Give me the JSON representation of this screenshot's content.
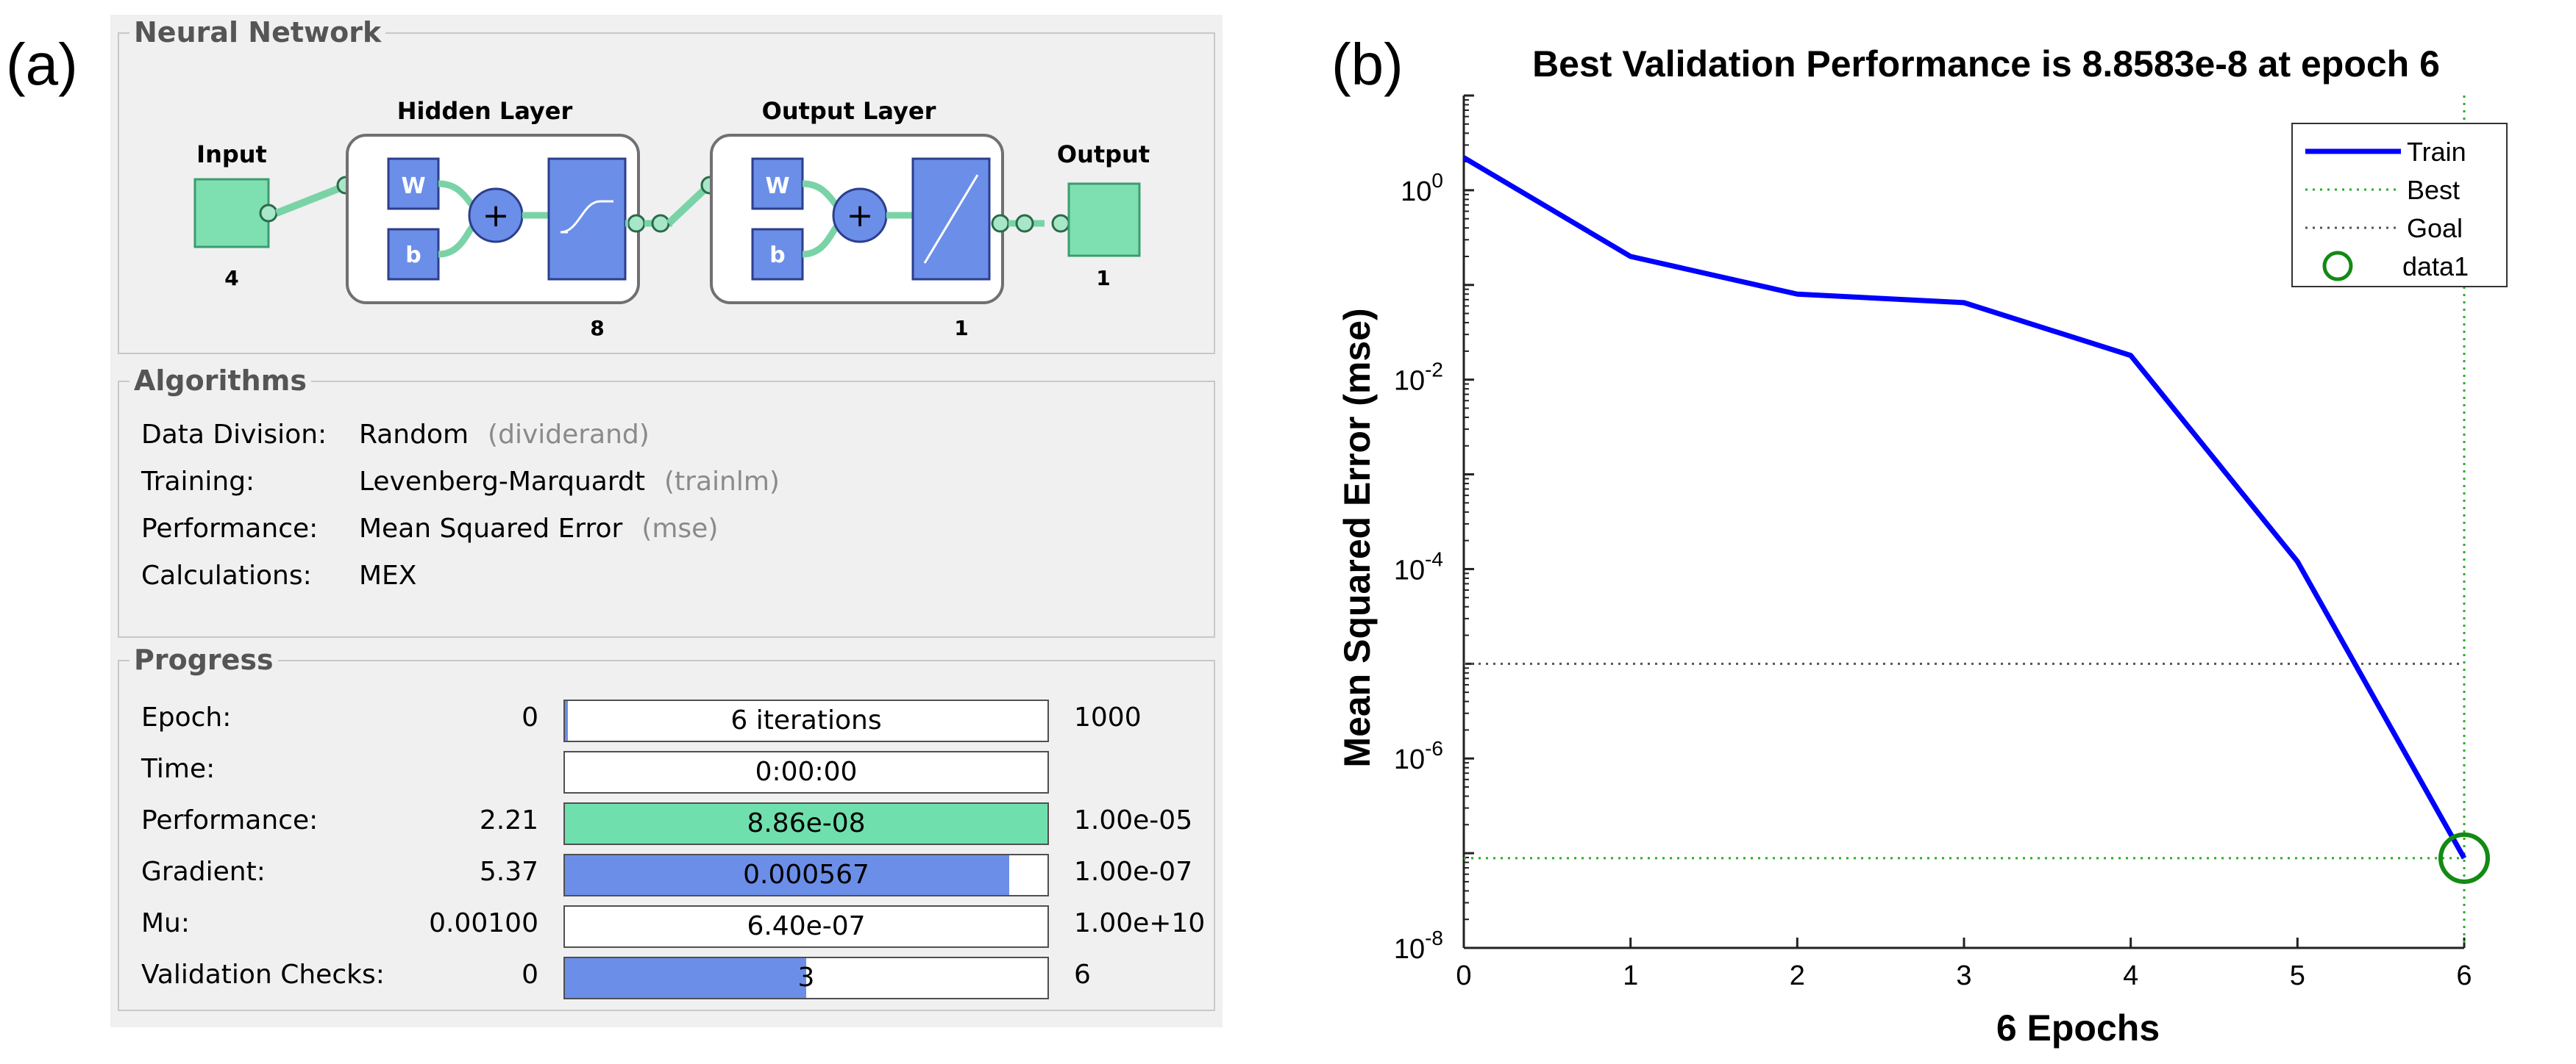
{
  "panel_labels": {
    "a": "(a)",
    "b": "(b)"
  },
  "neural_network": {
    "title": "Neural Network",
    "input": {
      "label": "Input",
      "size": "4"
    },
    "hidden_layer": {
      "label": "Hidden Layer",
      "size": "8",
      "w": "W",
      "b": "b",
      "plus": "+"
    },
    "output_layer": {
      "label": "Output Layer",
      "size": "1",
      "w": "W",
      "b": "b",
      "plus": "+"
    },
    "output": {
      "label": "Output",
      "size": "1"
    },
    "colors": {
      "layer_blue": "#6b8ee8",
      "io_green": "#7ee0b0",
      "arrow_green": "#79d3a6"
    }
  },
  "algorithms": {
    "title": "Algorithms",
    "rows": [
      {
        "label": "Data Division:",
        "value": "Random",
        "fn": "(dividerand)"
      },
      {
        "label": "Training:",
        "value": "Levenberg-Marquardt",
        "fn": "(trainlm)"
      },
      {
        "label": "Performance:",
        "value": "Mean Squared Error",
        "fn": "(mse)"
      },
      {
        "label": "Calculations:",
        "value": "MEX",
        "fn": ""
      }
    ]
  },
  "progress": {
    "title": "Progress",
    "rows": [
      {
        "label": "Epoch:",
        "start": "0",
        "text": "6 iterations",
        "end": "1000",
        "fill": 0.006,
        "color": "#6b8ee8"
      },
      {
        "label": "Time:",
        "start": "",
        "text": "0:00:00",
        "end": "",
        "fill": 0,
        "color": "#6b8ee8"
      },
      {
        "label": "Performance:",
        "start": "2.21",
        "text": "8.86e-08",
        "end": "1.00e-05",
        "fill": 1.0,
        "color": "#6fe0ad"
      },
      {
        "label": "Gradient:",
        "start": "5.37",
        "text": "0.000567",
        "end": "1.00e-07",
        "fill": 0.92,
        "color": "#6b8ee8"
      },
      {
        "label": "Mu:",
        "start": "0.00100",
        "text": "6.40e-07",
        "end": "1.00e+10",
        "fill": 0,
        "color": "#6b8ee8"
      },
      {
        "label": "Validation Checks:",
        "start": "0",
        "text": "3",
        "end": "6",
        "fill": 0.5,
        "color": "#6b8ee8"
      }
    ]
  },
  "chart_data": {
    "type": "line",
    "title": "Best Validation Performance is 8.8583e-8 at epoch 6",
    "xlabel": "6 Epochs",
    "ylabel": "Mean Squared Error  (mse)",
    "yscale": "log",
    "xlim": [
      0,
      6
    ],
    "ylim_exp": [
      -8,
      1
    ],
    "xticks": [
      "0",
      "1",
      "2",
      "3",
      "4",
      "5",
      "6"
    ],
    "yticks": [
      {
        "exp": 0,
        "base": "10",
        "sup": "0"
      },
      {
        "exp": -2,
        "base": "10",
        "sup": "-2"
      },
      {
        "exp": -4,
        "base": "10",
        "sup": "-4"
      },
      {
        "exp": -6,
        "base": "10",
        "sup": "-6"
      },
      {
        "exp": -8,
        "base": "10",
        "sup": "-8"
      }
    ],
    "series": [
      {
        "name": "Train",
        "color": "#0000ff",
        "x": [
          0,
          1,
          2,
          3,
          4,
          5,
          6
        ],
        "y": [
          2.21,
          0.2,
          0.08,
          0.065,
          0.018,
          0.00012,
          8.8583e-08
        ]
      }
    ],
    "best": {
      "name": "Best",
      "x": 6,
      "y": 8.8583e-08,
      "color": "#2eaa2e"
    },
    "goal": {
      "name": "Goal",
      "y": 1e-05,
      "color": "#555555"
    },
    "marker": {
      "name": "data1",
      "x": 6,
      "y": 8.8583e-08,
      "color": "#138a13"
    },
    "legend_position": "top-right"
  }
}
